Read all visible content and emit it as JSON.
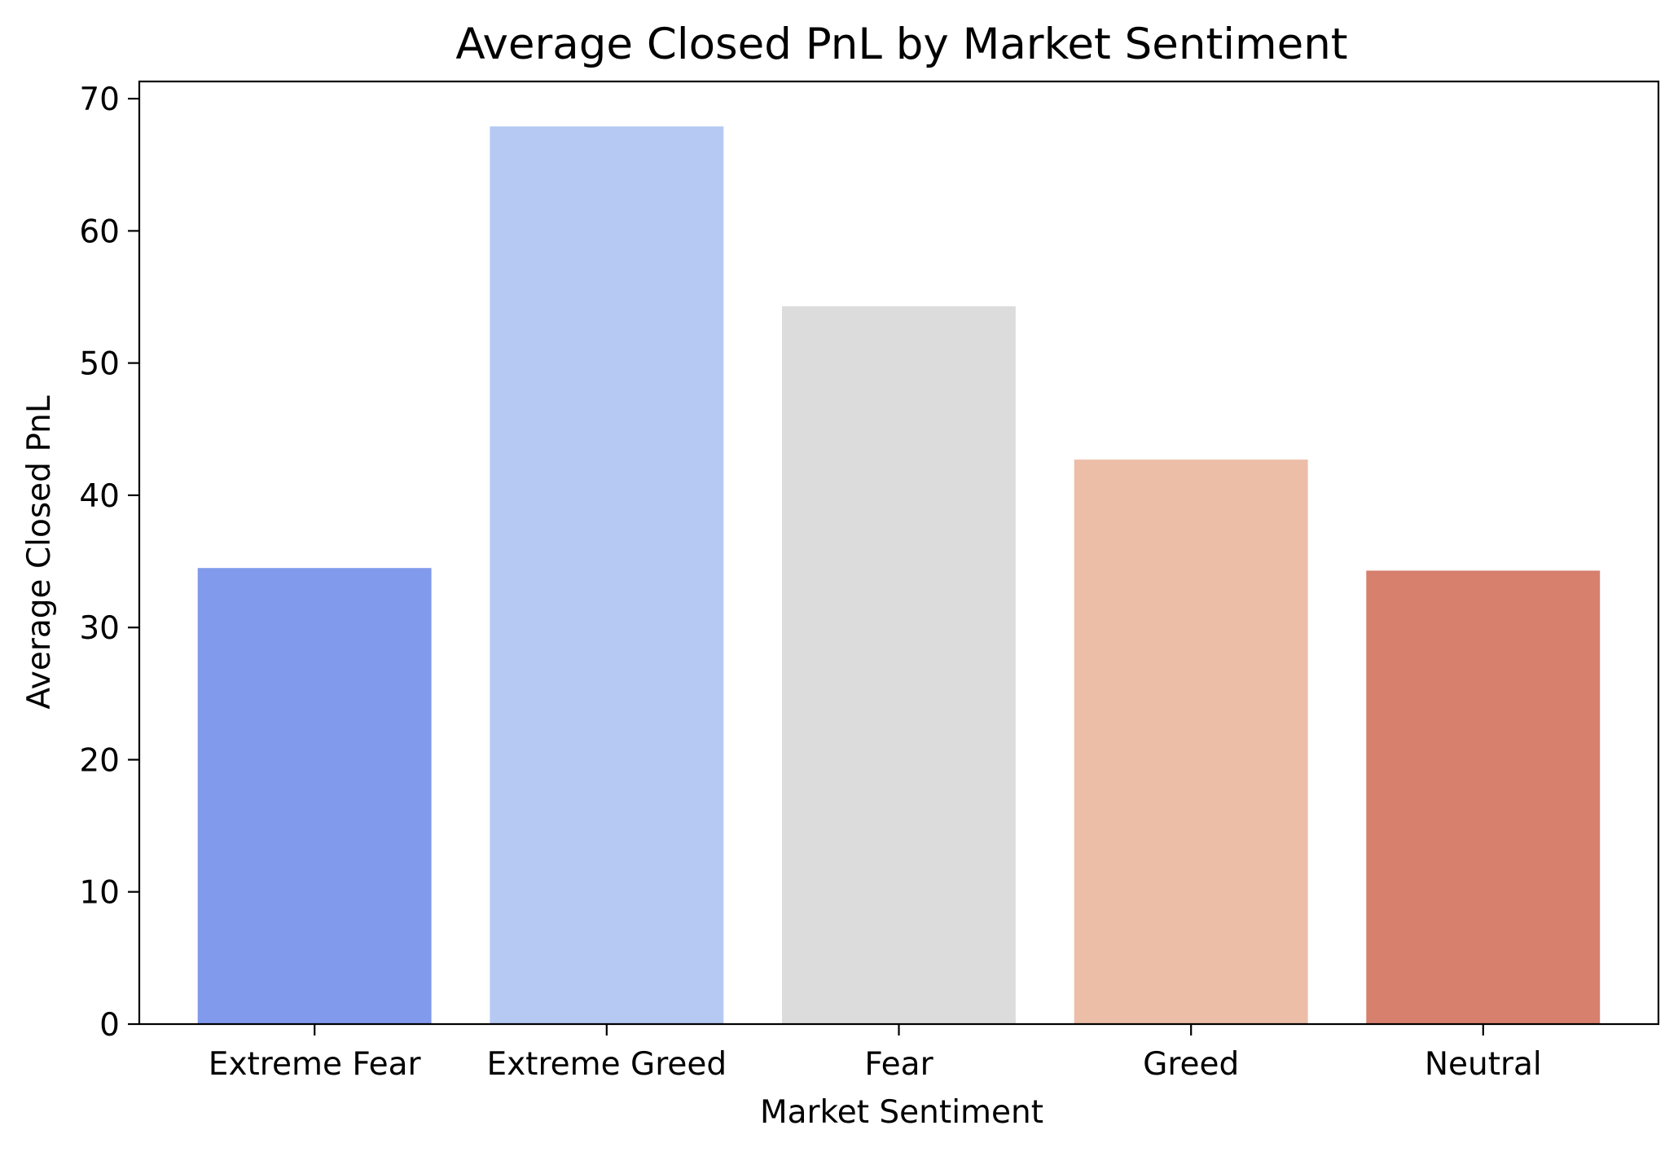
{
  "chart_data": {
    "type": "bar",
    "title": "Average Closed PnL by Market Sentiment",
    "xlabel": "Market Sentiment",
    "ylabel": "Average Closed PnL",
    "categories": [
      "Extreme Fear",
      "Extreme Greed",
      "Fear",
      "Greed",
      "Neutral"
    ],
    "values": [
      34.5,
      67.9,
      54.3,
      42.7,
      34.3
    ],
    "colors": [
      "#819aeb",
      "#b5c9f2",
      "#dcdcdc",
      "#ecbda7",
      "#d6806d"
    ],
    "ylim": [
      0,
      71.3
    ],
    "yticks": [
      0,
      10,
      20,
      30,
      40,
      50,
      60,
      70
    ],
    "grid": false,
    "legend": "none"
  }
}
